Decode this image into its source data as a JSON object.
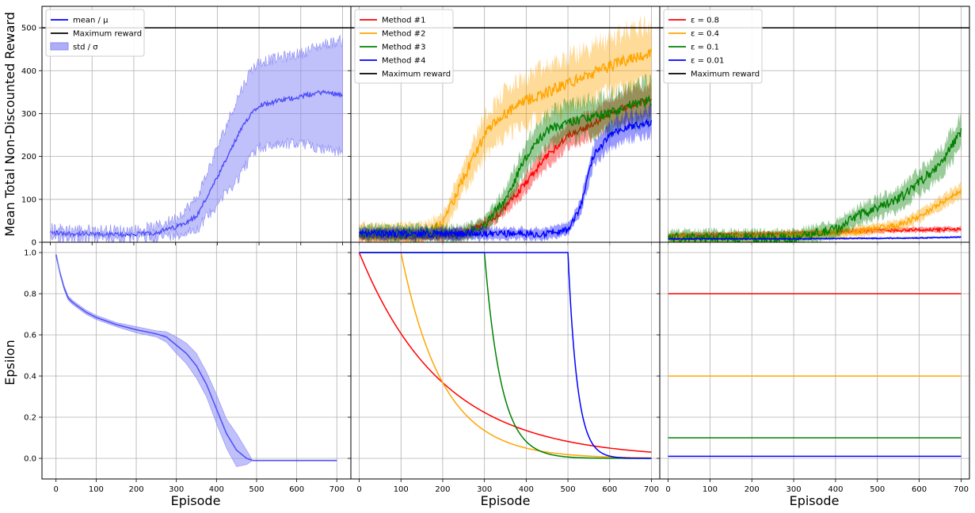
{
  "figure": {
    "xlabel": "Episode",
    "ylabel_top": "Mean Total Non-Discounted Reward",
    "ylabel_bottom": "Epsilon"
  },
  "colors": {
    "red": "#ff0000",
    "orange": "#ffa500",
    "green": "#008000",
    "blue": "#0000ff",
    "black": "#000000",
    "band_blue": "#8c8cf5",
    "grid": "#b0b0b0"
  },
  "chart_data": [
    {
      "id": "reward_single",
      "type": "line",
      "xlabel": "",
      "ylabel": "Mean Total Non-Discounted Reward",
      "xlim": [
        -20,
        720
      ],
      "ylim": [
        0,
        550
      ],
      "xticks": [
        0,
        100,
        200,
        300,
        400,
        500,
        600,
        700
      ],
      "yticks": [
        0,
        100,
        200,
        300,
        400,
        500
      ],
      "grid": true,
      "legend_position": "top-left",
      "legend": [
        "mean / μ",
        "Maximum reward",
        "std / σ"
      ],
      "series": [
        {
          "name": "mean / μ",
          "color": "blue",
          "style": "noisy",
          "x": [
            0,
            100,
            200,
            250,
            300,
            350,
            400,
            450,
            480,
            500,
            550,
            600,
            650,
            700
          ],
          "y": [
            22,
            18,
            18,
            22,
            35,
            60,
            150,
            250,
            300,
            320,
            330,
            340,
            350,
            345
          ],
          "noise": 12
        },
        {
          "name": "std / σ",
          "color": "band_blue",
          "style": "band",
          "x": [
            0,
            100,
            200,
            250,
            300,
            350,
            400,
            450,
            480,
            500,
            550,
            600,
            650,
            700
          ],
          "lower": [
            12,
            10,
            10,
            12,
            18,
            30,
            90,
            150,
            200,
            220,
            230,
            230,
            220,
            210
          ],
          "upper": [
            32,
            28,
            28,
            35,
            55,
            100,
            220,
            340,
            400,
            420,
            430,
            440,
            460,
            470
          ],
          "noise": 14
        },
        {
          "name": "Maximum reward",
          "color": "black",
          "style": "hline",
          "y": 500
        }
      ]
    },
    {
      "id": "reward_methods",
      "type": "line",
      "xlabel": "",
      "ylabel": "",
      "xlim": [
        -20,
        720
      ],
      "ylim": [
        0,
        550
      ],
      "xticks": [
        0,
        100,
        200,
        300,
        400,
        500,
        600,
        700
      ],
      "yticks": [
        0,
        100,
        200,
        300,
        400,
        500
      ],
      "grid": true,
      "legend_position": "top-left",
      "legend": [
        "Method #1",
        "Method #2",
        "Method #3",
        "Method #4",
        "Maximum reward"
      ],
      "series": [
        {
          "name": "Method #1",
          "color": "red",
          "style": "noisy",
          "x": [
            0,
            150,
            250,
            300,
            350,
            400,
            450,
            500,
            550,
            600,
            650,
            700
          ],
          "y": [
            15,
            15,
            20,
            40,
            80,
            140,
            200,
            250,
            270,
            300,
            320,
            330
          ],
          "noise": 18
        },
        {
          "name": "Method #2",
          "color": "orange",
          "style": "noisy",
          "x": [
            0,
            150,
            200,
            250,
            300,
            350,
            400,
            450,
            500,
            550,
            600,
            650,
            700
          ],
          "y": [
            20,
            20,
            40,
            150,
            250,
            300,
            330,
            350,
            370,
            390,
            410,
            430,
            440
          ],
          "noise": 30
        },
        {
          "name": "Method #3",
          "color": "green",
          "style": "noisy",
          "x": [
            0,
            250,
            300,
            350,
            400,
            450,
            500,
            550,
            600,
            650,
            700
          ],
          "y": [
            20,
            20,
            40,
            100,
            200,
            260,
            280,
            290,
            300,
            320,
            330
          ],
          "noise": 25
        },
        {
          "name": "Method #4",
          "color": "blue",
          "style": "noisy",
          "x": [
            0,
            450,
            500,
            530,
            560,
            600,
            650,
            700
          ],
          "y": [
            20,
            20,
            30,
            80,
            200,
            250,
            270,
            280
          ],
          "noise": 18
        },
        {
          "name": "Maximum reward",
          "color": "black",
          "style": "hline",
          "y": 500
        }
      ]
    },
    {
      "id": "reward_eps",
      "type": "line",
      "xlabel": "",
      "ylabel": "",
      "xlim": [
        -20,
        720
      ],
      "ylim": [
        0,
        550
      ],
      "xticks": [
        0,
        100,
        200,
        300,
        400,
        500,
        600,
        700
      ],
      "yticks": [
        0,
        100,
        200,
        300,
        400,
        500
      ],
      "grid": true,
      "legend_position": "top-left",
      "legend": [
        "ε = 0.8",
        "ε = 0.4",
        "ε = 0.1",
        "ε = 0.01",
        "Maximum reward"
      ],
      "series": [
        {
          "name": "ε = 0.8",
          "color": "red",
          "style": "noisy",
          "x": [
            0,
            300,
            500,
            700
          ],
          "y": [
            15,
            20,
            28,
            30
          ],
          "noise": 8
        },
        {
          "name": "ε = 0.4",
          "color": "orange",
          "style": "noisy",
          "x": [
            0,
            300,
            450,
            550,
            600,
            650,
            700
          ],
          "y": [
            10,
            15,
            25,
            40,
            60,
            90,
            120
          ],
          "noise": 15
        },
        {
          "name": "ε = 0.1",
          "color": "green",
          "style": "noisy",
          "x": [
            0,
            300,
            400,
            450,
            500,
            550,
            600,
            650,
            700
          ],
          "y": [
            10,
            10,
            30,
            60,
            80,
            100,
            140,
            180,
            260
          ],
          "noise": 25
        },
        {
          "name": "ε = 0.01",
          "color": "blue",
          "style": "noisy",
          "x": [
            0,
            300,
            600,
            700
          ],
          "y": [
            8,
            8,
            10,
            12
          ],
          "noise": 3
        },
        {
          "name": "Maximum reward",
          "color": "black",
          "style": "hline",
          "y": 500
        }
      ]
    },
    {
      "id": "eps_single",
      "type": "line",
      "xlabel": "Episode",
      "ylabel": "Epsilon",
      "xlim": [
        -35,
        735
      ],
      "ylim": [
        -0.1,
        1.05
      ],
      "xticks": [
        0,
        100,
        200,
        300,
        400,
        500,
        600,
        700
      ],
      "yticks": [
        0.0,
        0.2,
        0.4,
        0.6,
        0.8,
        1.0
      ],
      "grid": true,
      "series": [
        {
          "name": "",
          "color": "blue",
          "style": "line",
          "x": [
            0,
            10,
            20,
            30,
            40,
            50,
            75,
            100,
            150,
            200,
            250,
            275,
            300,
            325,
            350,
            375,
            400,
            425,
            450,
            475,
            490,
            500,
            600,
            700
          ],
          "y": [
            0.99,
            0.9,
            0.83,
            0.78,
            0.76,
            0.745,
            0.71,
            0.685,
            0.65,
            0.625,
            0.605,
            0.59,
            0.55,
            0.51,
            0.45,
            0.36,
            0.24,
            0.12,
            0.04,
            0.0,
            -0.01,
            -0.01,
            -0.01,
            -0.01
          ]
        },
        {
          "name": "",
          "color": "band_blue",
          "style": "band",
          "x": [
            0,
            10,
            20,
            30,
            40,
            50,
            75,
            100,
            150,
            200,
            250,
            275,
            300,
            325,
            350,
            375,
            400,
            425,
            450,
            475,
            490,
            500,
            600,
            700
          ],
          "lower": [
            0.99,
            0.89,
            0.82,
            0.77,
            0.75,
            0.735,
            0.7,
            0.675,
            0.64,
            0.61,
            0.59,
            0.565,
            0.51,
            0.46,
            0.39,
            0.3,
            0.17,
            0.05,
            -0.04,
            -0.03,
            -0.01,
            -0.01,
            -0.01,
            -0.01
          ],
          "upper": [
            0.99,
            0.91,
            0.84,
            0.79,
            0.77,
            0.755,
            0.72,
            0.695,
            0.66,
            0.64,
            0.62,
            0.615,
            0.59,
            0.56,
            0.51,
            0.42,
            0.31,
            0.19,
            0.12,
            0.04,
            -0.01,
            -0.01,
            -0.01,
            -0.01
          ]
        }
      ]
    },
    {
      "id": "eps_methods",
      "type": "line",
      "xlabel": "Episode",
      "ylabel": "",
      "xlim": [
        -20,
        720
      ],
      "ylim": [
        -0.1,
        1.05
      ],
      "xticks": [
        0,
        100,
        200,
        300,
        400,
        500,
        600,
        700
      ],
      "yticks": [
        0.0,
        0.2,
        0.4,
        0.6,
        0.8,
        1.0
      ],
      "grid": true,
      "series": [
        {
          "name": "Method #1",
          "color": "red",
          "style": "decay",
          "start": 0,
          "rate": 0.005
        },
        {
          "name": "Method #2",
          "color": "orange",
          "style": "decay",
          "start": 100,
          "rate": 0.01
        },
        {
          "name": "Method #3",
          "color": "green",
          "style": "decay",
          "start": 300,
          "rate": 0.025
        },
        {
          "name": "Method #4",
          "color": "blue",
          "style": "decay",
          "start": 500,
          "rate": 0.045
        }
      ]
    },
    {
      "id": "eps_fixed",
      "type": "line",
      "xlabel": "Episode",
      "ylabel": "",
      "xlim": [
        -20,
        720
      ],
      "ylim": [
        -0.1,
        1.05
      ],
      "xticks": [
        0,
        100,
        200,
        300,
        400,
        500,
        600,
        700
      ],
      "yticks": [
        0.0,
        0.2,
        0.4,
        0.6,
        0.8,
        1.0
      ],
      "grid": true,
      "series": [
        {
          "name": "ε = 0.8",
          "color": "red",
          "style": "line",
          "x": [
            0,
            700
          ],
          "y": [
            0.8,
            0.8
          ]
        },
        {
          "name": "ε = 0.4",
          "color": "orange",
          "style": "line",
          "x": [
            0,
            700
          ],
          "y": [
            0.4,
            0.4
          ]
        },
        {
          "name": "ε = 0.1",
          "color": "green",
          "style": "line",
          "x": [
            0,
            700
          ],
          "y": [
            0.1,
            0.1
          ]
        },
        {
          "name": "ε = 0.01",
          "color": "blue",
          "style": "line",
          "x": [
            0,
            700
          ],
          "y": [
            0.01,
            0.01
          ]
        }
      ]
    }
  ]
}
